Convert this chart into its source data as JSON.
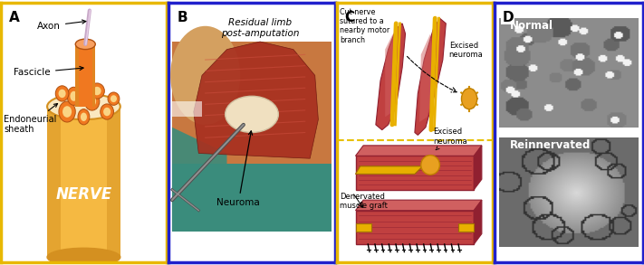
{
  "fig_width": 7.11,
  "fig_height": 2.93,
  "dpi": 100,
  "bg_color": "#ffffff",
  "panel_A": {
    "label": "A",
    "border_color": "#E8B800",
    "bg": "#ffffff",
    "nerve_color": "#F5B942",
    "nerve_light": "#FAD484",
    "nerve_shade": "#D49020",
    "cross_bg": "#FAE8C0",
    "fascicle_color": "#F07820",
    "fascicle_light": "#F8A060",
    "axon_color": "#C8A8C8"
  },
  "panel_B": {
    "label": "B",
    "border_color": "#2020CC",
    "bg_top": "#ffffff",
    "photo_bg": "#C87840",
    "wound_color": "#A83020",
    "teal": "#3A8C7C",
    "neuroma_color": "#F0E0C0",
    "title": "Residual limb\npost-amputation",
    "annotation": "Neuroma"
  },
  "panel_C": {
    "label": "C",
    "border_color": "#E8B800",
    "bg": "#ffffff",
    "muscle_color": "#C04040",
    "muscle_light": "#D06060",
    "muscle_dark": "#902030",
    "nerve_yellow": "#E8B000",
    "neuroma_color": "#E8A020",
    "divider_color": "#E8C000"
  },
  "panel_D": {
    "label": "D",
    "border_color": "#2020CC",
    "bg": "#ffffff",
    "top_label": "Normal",
    "bottom_label": "Reinnervated"
  }
}
